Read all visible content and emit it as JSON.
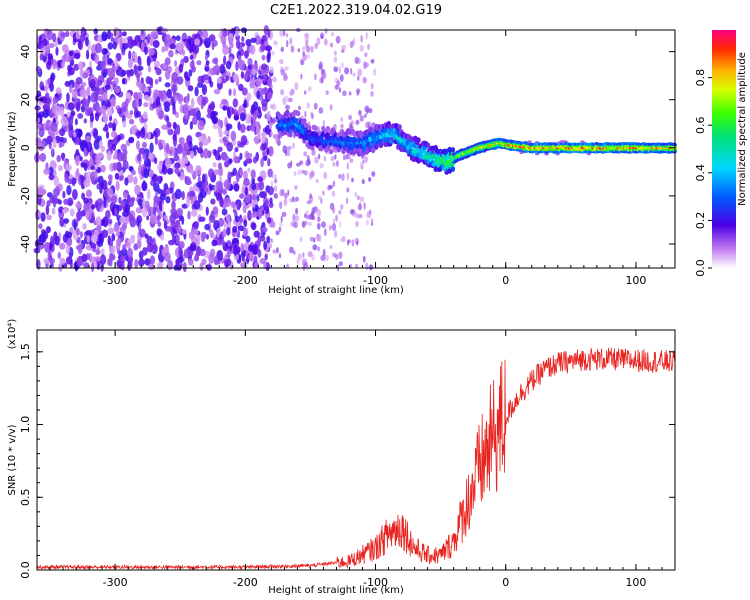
{
  "title": "C2E1.2022.319.04.02.G19",
  "chart_data": [
    {
      "type": "heatmap",
      "xlabel": "Height of straight line (km)",
      "ylabel": "Frequency (Hz)",
      "xlim": [
        -360,
        130
      ],
      "ylim": [
        -50,
        49
      ],
      "x_ticks": [
        -300,
        -200,
        -100,
        0,
        100
      ],
      "y_ticks": [
        -40,
        -20,
        0,
        20,
        40
      ],
      "colorbar": {
        "label": "Normalized spectral amplitude",
        "range": [
          0.0,
          1.0
        ],
        "ticks": [
          "0.0",
          "0.2",
          "0.4",
          "0.6",
          "0.8"
        ]
      },
      "ridge": {
        "x": [
          -175,
          -160,
          -150,
          -130,
          -110,
          -95,
          -85,
          -75,
          -65,
          -55,
          -45,
          -35,
          -20,
          -5,
          5,
          20,
          50,
          90,
          130
        ],
        "y": [
          10,
          10,
          4,
          3,
          2,
          5,
          6,
          1,
          -2,
          -4,
          -6,
          -3,
          0,
          2,
          1,
          0,
          0,
          0,
          0
        ],
        "amplitude": [
          0.35,
          0.4,
          0.3,
          0.35,
          0.4,
          0.45,
          0.5,
          0.5,
          0.55,
          0.6,
          0.7,
          0.8,
          0.85,
          0.9,
          0.95,
          1.0,
          1.0,
          0.95,
          0.9
        ]
      },
      "noise_region_x": [
        -360,
        -180
      ]
    },
    {
      "type": "line",
      "xlabel": "Height of straight line (km)",
      "ylabel": "SNR (10 * v/v)",
      "y_scale_label": "(x10⁴)",
      "xlim": [
        -360,
        130
      ],
      "ylim": [
        0,
        1.65
      ],
      "x_ticks": [
        -300,
        -200,
        -100,
        0,
        100
      ],
      "y_ticks": [
        "0.0",
        "0.5",
        "1.0",
        "1.5"
      ],
      "color": "#e8231f",
      "series": [
        {
          "x": [
            -360,
            -300,
            -200,
            -150,
            -120,
            -100,
            -90,
            -80,
            -70,
            -60,
            -50,
            -40,
            -30,
            -20,
            -10,
            0,
            10,
            20,
            30,
            40,
            60,
            80,
            100,
            130
          ],
          "y": [
            0.02,
            0.02,
            0.02,
            0.03,
            0.06,
            0.15,
            0.25,
            0.3,
            0.15,
            0.1,
            0.1,
            0.2,
            0.45,
            0.7,
            0.9,
            1.05,
            1.2,
            1.3,
            1.38,
            1.42,
            1.45,
            1.45,
            1.44,
            1.43
          ]
        }
      ]
    }
  ]
}
